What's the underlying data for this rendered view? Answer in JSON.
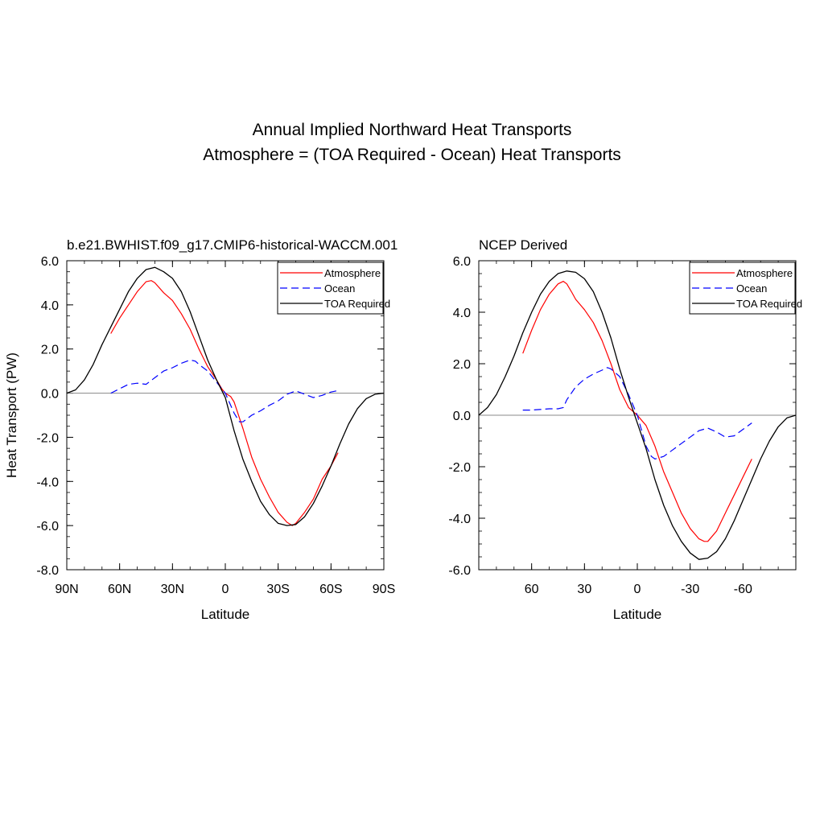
{
  "figure": {
    "title_line1": "Annual Implied Northward Heat Transports",
    "title_line2": "Atmosphere = (TOA Required - Ocean) Heat Transports"
  },
  "colors": {
    "atmosphere": "#ff0000",
    "ocean": "#0000ff",
    "toa": "#000000",
    "zero_line": "#888888"
  },
  "chart_data": [
    {
      "type": "line",
      "title": "b.e21.BWHIST.f09_g17.CMIP6-historical-WACCM.001",
      "xlabel": "Latitude",
      "ylabel": "Heat Transport (PW)",
      "xlim": [
        90,
        -90
      ],
      "ylim": [
        -8,
        6
      ],
      "xticks": [
        90,
        60,
        30,
        0,
        -30,
        -60,
        -90
      ],
      "xticklabels": [
        "90N",
        "60N",
        "30N",
        "0",
        "30S",
        "60S",
        "90S"
      ],
      "yticks": [
        6,
        4,
        2,
        0,
        -2,
        -4,
        -6,
        -8
      ],
      "yticklabels": [
        "6.0",
        "4.0",
        "2.0",
        "0.0",
        "-2.0",
        "-4.0",
        "-6.0",
        "-8.0"
      ],
      "legend": {
        "position": "top-right",
        "entries": [
          "Atmosphere",
          "Ocean",
          "TOA Required"
        ]
      },
      "series": [
        {
          "name": "Atmosphere",
          "style": "solid",
          "color": "red",
          "x": [
            65,
            60,
            55,
            50,
            45,
            42,
            40,
            35,
            30,
            25,
            20,
            15,
            10,
            5,
            2,
            0,
            -3,
            -5,
            -10,
            -15,
            -20,
            -25,
            -30,
            -35,
            -38,
            -40,
            -45,
            -50,
            -55,
            -60,
            -64
          ],
          "y": [
            2.7,
            3.4,
            4.0,
            4.6,
            5.05,
            5.1,
            5.0,
            4.55,
            4.2,
            3.6,
            2.9,
            2.0,
            1.2,
            0.6,
            0.2,
            0.0,
            -0.15,
            -0.4,
            -1.6,
            -2.9,
            -3.9,
            -4.7,
            -5.4,
            -5.85,
            -6.0,
            -5.9,
            -5.4,
            -4.8,
            -3.9,
            -3.3,
            -2.7
          ]
        },
        {
          "name": "Ocean",
          "style": "dashed",
          "color": "blue",
          "x": [
            65,
            60,
            55,
            50,
            45,
            40,
            35,
            30,
            25,
            20,
            17,
            15,
            10,
            5,
            0,
            -5,
            -8,
            -10,
            -15,
            -20,
            -25,
            -30,
            -35,
            -40,
            -45,
            -50,
            -55,
            -60,
            -63
          ],
          "y": [
            0.0,
            0.2,
            0.4,
            0.45,
            0.4,
            0.7,
            1.0,
            1.15,
            1.35,
            1.5,
            1.45,
            1.3,
            1.0,
            0.5,
            0.0,
            -0.9,
            -1.3,
            -1.3,
            -1.0,
            -0.8,
            -0.55,
            -0.35,
            -0.05,
            0.1,
            -0.05,
            -0.2,
            -0.1,
            0.05,
            0.1
          ]
        },
        {
          "name": "TOA Required",
          "style": "solid",
          "color": "black",
          "x": [
            90,
            85,
            80,
            75,
            70,
            65,
            60,
            55,
            50,
            45,
            40,
            35,
            30,
            25,
            20,
            15,
            10,
            5,
            0,
            -5,
            -10,
            -15,
            -20,
            -25,
            -30,
            -35,
            -40,
            -45,
            -50,
            -55,
            -60,
            -65,
            -70,
            -75,
            -80,
            -85,
            -90
          ],
          "y": [
            0.0,
            0.15,
            0.6,
            1.3,
            2.2,
            3.0,
            3.8,
            4.6,
            5.2,
            5.6,
            5.7,
            5.5,
            5.2,
            4.6,
            3.7,
            2.6,
            1.5,
            0.6,
            -0.2,
            -1.7,
            -3.0,
            -4.0,
            -4.9,
            -5.5,
            -5.9,
            -6.0,
            -5.95,
            -5.6,
            -5.0,
            -4.2,
            -3.3,
            -2.3,
            -1.4,
            -0.7,
            -0.25,
            -0.05,
            0.0
          ]
        }
      ]
    },
    {
      "type": "line",
      "title": "NCEP Derived",
      "xlabel": "Latitude",
      "ylabel": "",
      "xlim": [
        90,
        -90
      ],
      "ylim": [
        -6,
        6
      ],
      "xticks": [
        60,
        30,
        0,
        -30,
        -60
      ],
      "xticklabels": [
        "60",
        "30",
        "0",
        "-30",
        "-60"
      ],
      "yticks": [
        6,
        4,
        2,
        0,
        -2,
        -4,
        -6
      ],
      "yticklabels": [
        "6.0",
        "4.0",
        "2.0",
        "0.0",
        "-2.0",
        "-4.0",
        "-6.0"
      ],
      "legend": {
        "position": "top-right",
        "entries": [
          "Atmosphere",
          "Ocean",
          "TOA Required"
        ]
      },
      "series": [
        {
          "name": "Atmosphere",
          "style": "solid",
          "color": "red",
          "x": [
            65,
            60,
            55,
            50,
            45,
            42,
            40,
            37,
            35,
            30,
            25,
            20,
            15,
            10,
            5,
            0,
            -5,
            -10,
            -15,
            -20,
            -25,
            -30,
            -35,
            -38,
            -40,
            -45,
            -50,
            -55,
            -60,
            -65
          ],
          "y": [
            2.4,
            3.3,
            4.1,
            4.7,
            5.1,
            5.2,
            5.1,
            4.75,
            4.5,
            4.1,
            3.6,
            2.9,
            2.0,
            1.0,
            0.3,
            0.0,
            -0.4,
            -1.2,
            -2.2,
            -3.0,
            -3.8,
            -4.4,
            -4.8,
            -4.9,
            -4.9,
            -4.5,
            -3.8,
            -3.1,
            -2.4,
            -1.7
          ]
        },
        {
          "name": "Ocean",
          "style": "dashed",
          "color": "blue",
          "x": [
            65,
            60,
            50,
            45,
            42,
            40,
            37,
            35,
            30,
            25,
            20,
            17,
            15,
            10,
            5,
            0,
            -5,
            -8,
            -10,
            -15,
            -20,
            -25,
            -30,
            -35,
            -40,
            -45,
            -50,
            -55,
            -60,
            -65
          ],
          "y": [
            0.2,
            0.2,
            0.25,
            0.25,
            0.3,
            0.6,
            0.9,
            1.1,
            1.4,
            1.6,
            1.75,
            1.85,
            1.8,
            1.5,
            0.8,
            0.0,
            -1.2,
            -1.6,
            -1.7,
            -1.6,
            -1.35,
            -1.1,
            -0.85,
            -0.6,
            -0.5,
            -0.65,
            -0.85,
            -0.8,
            -0.55,
            -0.3
          ]
        },
        {
          "name": "TOA Required",
          "style": "solid",
          "color": "black",
          "x": [
            90,
            85,
            80,
            75,
            70,
            65,
            60,
            55,
            50,
            45,
            40,
            35,
            30,
            25,
            20,
            15,
            10,
            5,
            0,
            -5,
            -10,
            -15,
            -20,
            -25,
            -30,
            -35,
            -40,
            -45,
            -50,
            -55,
            -60,
            -65,
            -70,
            -75,
            -80,
            -85,
            -90
          ],
          "y": [
            0.0,
            0.3,
            0.8,
            1.5,
            2.3,
            3.2,
            4.0,
            4.7,
            5.2,
            5.5,
            5.6,
            5.55,
            5.3,
            4.8,
            4.0,
            3.0,
            1.8,
            0.7,
            -0.3,
            -1.3,
            -2.5,
            -3.5,
            -4.3,
            -4.9,
            -5.35,
            -5.6,
            -5.55,
            -5.3,
            -4.8,
            -4.1,
            -3.3,
            -2.5,
            -1.7,
            -1.0,
            -0.45,
            -0.1,
            0.0
          ]
        }
      ]
    }
  ]
}
